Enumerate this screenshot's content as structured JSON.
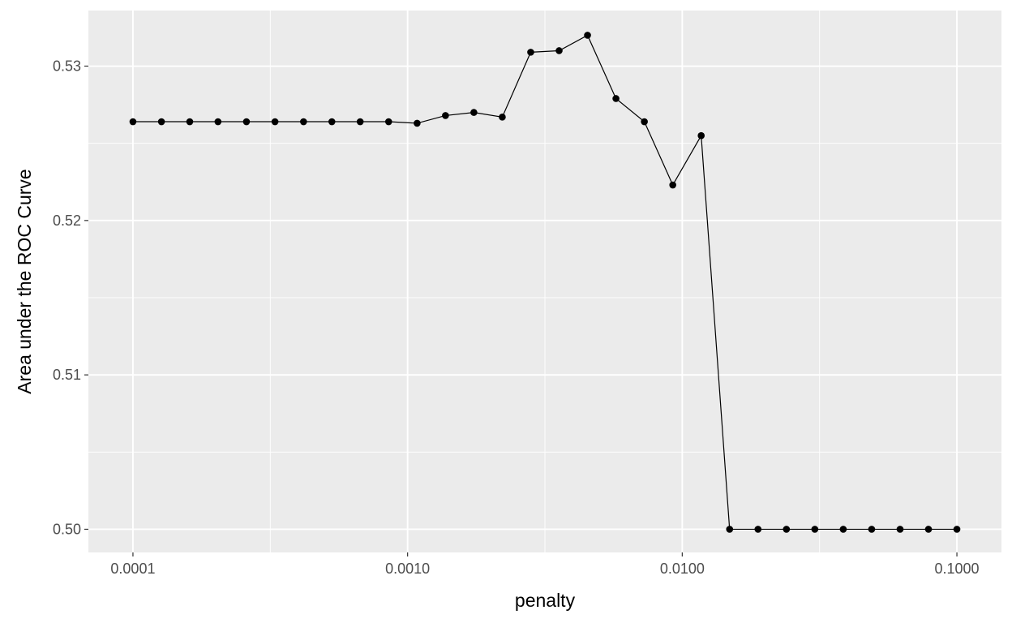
{
  "chart_data": {
    "type": "line",
    "title": "",
    "xlabel": "penalty",
    "ylabel": "Area under the ROC Curve",
    "x_scale": "log10",
    "xlim": [
      0.0001,
      0.1
    ],
    "ylim": [
      0.4985,
      0.5336
    ],
    "x_ticks": [
      0.0001,
      0.001,
      0.01,
      0.1
    ],
    "x_tick_labels": [
      "0.0001",
      "0.0010",
      "0.0100",
      "0.1000"
    ],
    "y_ticks": [
      0.5,
      0.51,
      0.52,
      0.53
    ],
    "y_tick_labels": [
      "0.50",
      "0.51",
      "0.52",
      "0.53"
    ],
    "grid": true,
    "legend": "none",
    "colors": {
      "panel": "#ebebeb",
      "grid": "#ffffff",
      "series": "#000000"
    },
    "series": [
      {
        "x": [
          0.0001,
          0.000127,
          0.000161,
          0.000204,
          0.000259,
          0.000329,
          0.000418,
          0.00053,
          0.000672,
          0.000853,
          0.001083,
          0.001374,
          0.001743,
          0.002212,
          0.002807,
          0.003562,
          0.00452,
          0.005736,
          0.007279,
          0.009237,
          0.011721,
          0.014874,
          0.018874,
          0.02395,
          0.030392,
          0.038566,
          0.048939,
          0.062102,
          0.078805,
          0.1
        ],
        "y": [
          0.5264,
          0.5264,
          0.5264,
          0.5264,
          0.5264,
          0.5264,
          0.5264,
          0.5264,
          0.5264,
          0.5264,
          0.5263,
          0.5268,
          0.527,
          0.5267,
          0.5309,
          0.531,
          0.532,
          0.5279,
          0.5264,
          0.5223,
          0.5255,
          0.5,
          0.5,
          0.5,
          0.5,
          0.5,
          0.5,
          0.5,
          0.5,
          0.5
        ]
      }
    ]
  }
}
